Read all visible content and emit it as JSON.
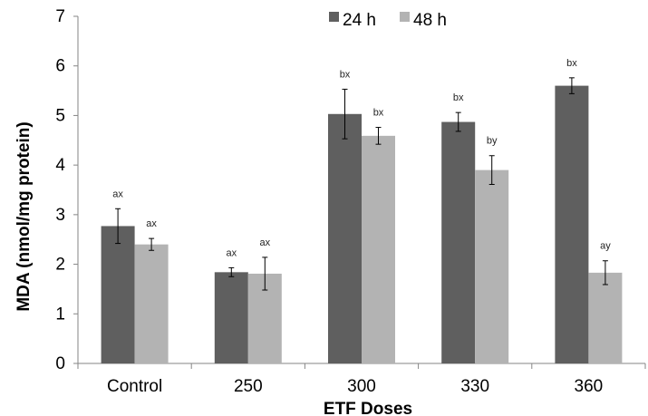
{
  "chart_data": {
    "type": "bar",
    "xlabel": "ETF Doses",
    "ylabel": "MDA (nmol/mg protein)",
    "categories": [
      "Control",
      "250",
      "300",
      "330",
      "360"
    ],
    "ylim": [
      0,
      7
    ],
    "yticks": [
      "0",
      "1",
      "2",
      "3",
      "4",
      "5",
      "6",
      "7"
    ],
    "grid": false,
    "legend_position": "top",
    "series": [
      {
        "name": "24 h",
        "color": "#5f5f5f",
        "values": [
          2.77,
          1.84,
          5.03,
          4.87,
          5.6
        ],
        "errors": [
          0.35,
          0.09,
          0.5,
          0.19,
          0.16
        ],
        "labels": [
          "ax",
          "ax",
          "bx",
          "bx",
          "bx"
        ]
      },
      {
        "name": "48 h",
        "color": "#b3b3b3",
        "values": [
          2.4,
          1.81,
          4.59,
          3.9,
          1.83
        ],
        "errors": [
          0.12,
          0.33,
          0.17,
          0.29,
          0.24
        ],
        "labels": [
          "ax",
          "ax",
          "bx",
          "by",
          "ay"
        ]
      }
    ]
  }
}
